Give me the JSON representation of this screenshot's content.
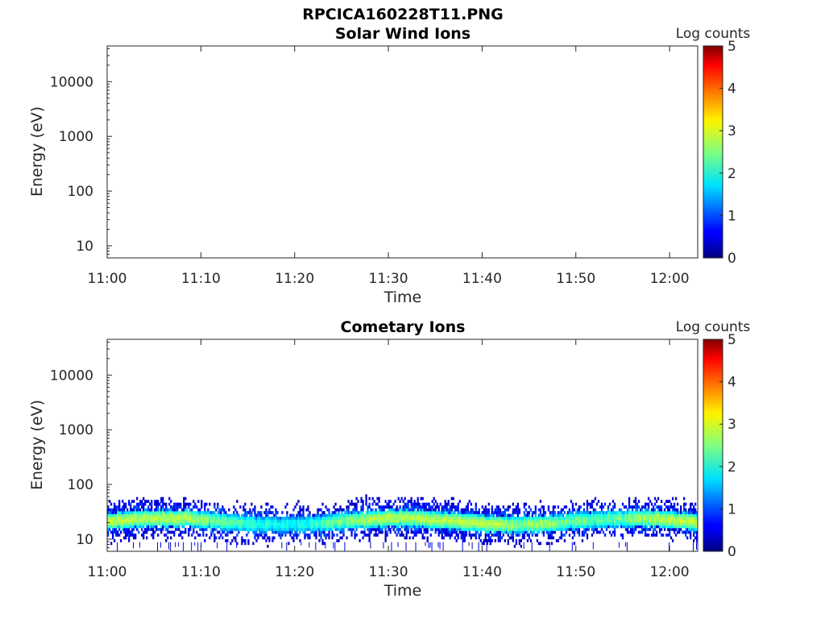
{
  "figure_title": "RPCICA160228T11.PNG",
  "chart_data": [
    {
      "type": "heatmap",
      "title": "Solar Wind Ions",
      "xlabel": "Time",
      "ylabel": "Energy (eV)",
      "x_ticks": [
        "11:00",
        "11:10",
        "11:20",
        "11:30",
        "11:40",
        "11:50",
        "12:00"
      ],
      "x_range": [
        "11:00",
        "12:03"
      ],
      "y_scale": "log",
      "y_ticks": [
        "10",
        "100",
        "1000",
        "10000"
      ],
      "y_range": [
        6,
        45000
      ],
      "colorbar": {
        "label": "Log counts",
        "ticks": [
          "0",
          "1",
          "2",
          "3",
          "4",
          "5"
        ],
        "range": [
          0,
          5
        ],
        "colormap": "jet"
      },
      "data_description": "empty",
      "grid": false
    },
    {
      "type": "heatmap",
      "title": "Cometary Ions",
      "xlabel": "Time",
      "ylabel": "Energy (eV)",
      "x_ticks": [
        "11:00",
        "11:10",
        "11:20",
        "11:30",
        "11:40",
        "11:50",
        "12:00"
      ],
      "x_range": [
        "11:00",
        "12:03"
      ],
      "y_scale": "log",
      "y_ticks": [
        "10",
        "100",
        "1000",
        "10000"
      ],
      "y_range": [
        6,
        45000
      ],
      "colorbar": {
        "label": "Log counts",
        "ticks": [
          "0",
          "1",
          "2",
          "3",
          "4",
          "5"
        ],
        "range": [
          0,
          5
        ],
        "colormap": "jet"
      },
      "band": {
        "core_energy_eV": [
          15,
          30
        ],
        "peak_log_counts": 3.0,
        "sparse_top_eV": 80,
        "sparse_bottom_eV": 7
      },
      "grid": false
    }
  ]
}
